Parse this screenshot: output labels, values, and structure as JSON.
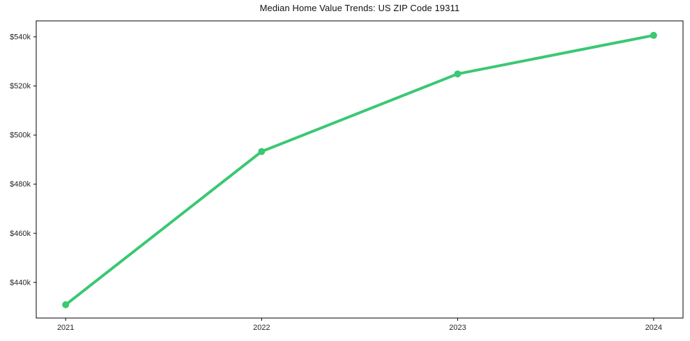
{
  "chart_data": {
    "type": "line",
    "title": "Median Home Value Trends: US ZIP Code 19311",
    "xlabel": "",
    "ylabel": "",
    "x": [
      2021,
      2022,
      2023,
      2024
    ],
    "x_tick_labels": [
      "2021",
      "2022",
      "2023",
      "2024"
    ],
    "series": [
      {
        "name": "Median Home Value",
        "values": [
          430900,
          493300,
          524900,
          540600
        ]
      }
    ],
    "y_ticks": [
      440000,
      460000,
      480000,
      500000,
      520000,
      540000
    ],
    "y_tick_labels": [
      "$440k",
      "$460k",
      "$480k",
      "$500k",
      "$520k",
      "$540k"
    ],
    "xlim": [
      2020.85,
      2024.15
    ],
    "ylim": [
      425500,
      546500
    ],
    "grid": false,
    "legend_position": "none",
    "colors": {
      "line": "#3ac873",
      "marker": "#3ac873",
      "axis": "#000000",
      "tick_text": "#262626",
      "title_text": "#111111",
      "background": "#ffffff"
    }
  }
}
